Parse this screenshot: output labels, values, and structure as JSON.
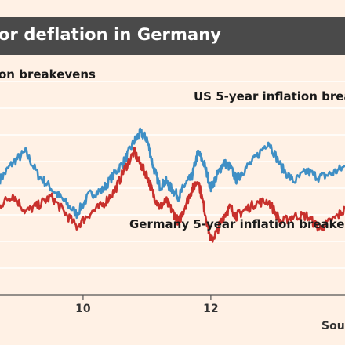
{
  "header": {
    "title": "or deflation in Germany",
    "subtitle": "on breakevens",
    "source": "Sou"
  },
  "colors": {
    "background": "#fff1e5",
    "title_bar": "#4a4a4a",
    "us_series": "#3f8fc5",
    "germany_series": "#c8302c",
    "gridline": "#ffffff",
    "axis": "#555555"
  },
  "chart_data": {
    "type": "line",
    "xlabel": "",
    "ylabel": "",
    "xlim": [
      2008.7,
      2014.1
    ],
    "ylim": [
      0,
      1
    ],
    "grid": true,
    "x_ticks": [
      {
        "label": "10",
        "value": 2010
      },
      {
        "label": "12",
        "value": 2012
      }
    ],
    "series": [
      {
        "name": "US 5-year inflation brea",
        "color": "#3f8fc5",
        "x": [
          2008.7,
          2008.9,
          2009.1,
          2009.3,
          2009.5,
          2009.7,
          2009.9,
          2010.1,
          2010.3,
          2010.5,
          2010.65,
          2010.8,
          2010.9,
          2011.0,
          2011.1,
          2011.2,
          2011.3,
          2011.4,
          2011.5,
          2011.6,
          2011.7,
          2011.8,
          2011.9,
          2012.0,
          2012.1,
          2012.2,
          2012.3,
          2012.4,
          2012.5,
          2012.7,
          2012.9,
          2013.1,
          2013.3,
          2013.5,
          2013.7,
          2013.9,
          2014.1
        ],
        "values": [
          0.54,
          0.62,
          0.67,
          0.56,
          0.5,
          0.44,
          0.38,
          0.47,
          0.49,
          0.57,
          0.63,
          0.72,
          0.76,
          0.73,
          0.6,
          0.51,
          0.53,
          0.49,
          0.46,
          0.52,
          0.55,
          0.67,
          0.61,
          0.5,
          0.56,
          0.62,
          0.6,
          0.54,
          0.58,
          0.64,
          0.72,
          0.6,
          0.53,
          0.58,
          0.55,
          0.57,
          0.6
        ]
      },
      {
        "name": "Germany 5-year inflation breake",
        "color": "#c8302c",
        "x": [
          2008.7,
          2008.9,
          2009.1,
          2009.3,
          2009.5,
          2009.7,
          2009.9,
          2010.1,
          2010.3,
          2010.5,
          2010.65,
          2010.8,
          2010.9,
          2011.0,
          2011.1,
          2011.2,
          2011.3,
          2011.4,
          2011.5,
          2011.6,
          2011.7,
          2011.8,
          2011.9,
          2012.0,
          2012.1,
          2012.2,
          2012.3,
          2012.4,
          2012.5,
          2012.7,
          2012.9,
          2013.1,
          2013.3,
          2013.5,
          2013.7,
          2013.9,
          2014.1
        ],
        "values": [
          0.42,
          0.47,
          0.39,
          0.42,
          0.46,
          0.39,
          0.32,
          0.38,
          0.42,
          0.49,
          0.59,
          0.67,
          0.61,
          0.56,
          0.47,
          0.41,
          0.44,
          0.39,
          0.34,
          0.42,
          0.49,
          0.54,
          0.4,
          0.25,
          0.3,
          0.37,
          0.41,
          0.37,
          0.39,
          0.43,
          0.44,
          0.34,
          0.37,
          0.37,
          0.31,
          0.35,
          0.4
        ]
      }
    ],
    "annotations": [
      {
        "text": "US 5-year inflation brea",
        "series": 0
      },
      {
        "text": "Germany 5-year inflation breake",
        "series": 1
      }
    ]
  }
}
